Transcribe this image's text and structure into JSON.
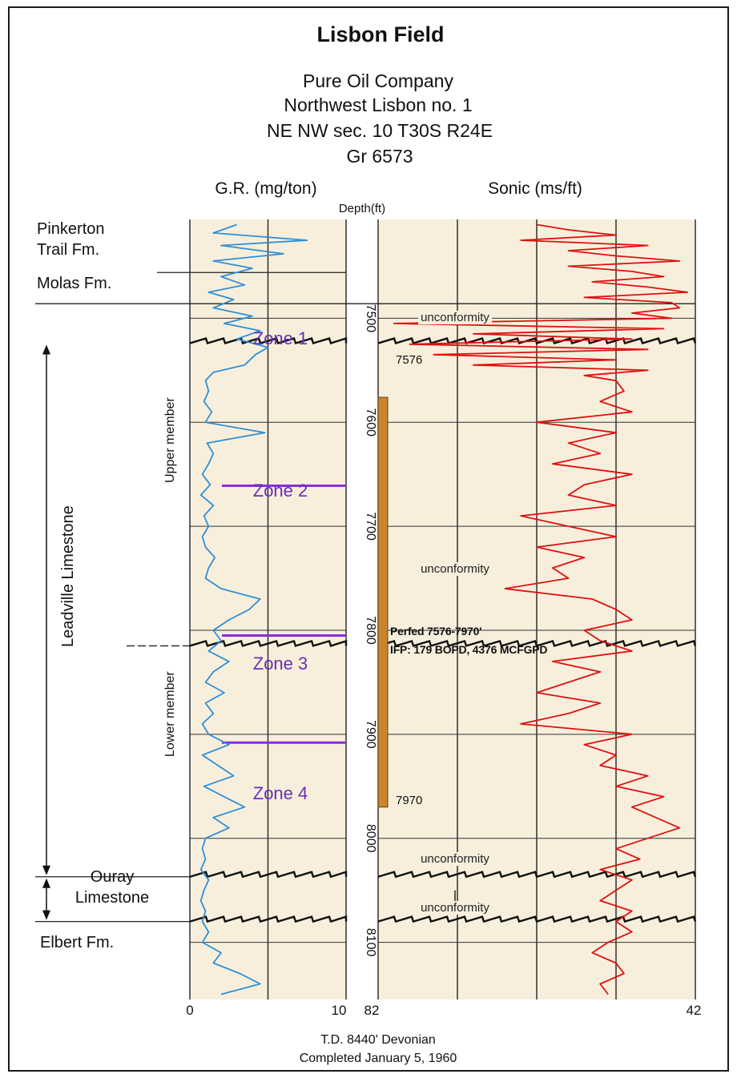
{
  "header": {
    "title": "Lisbon Field",
    "lines": [
      "Pure Oil Company",
      "Northwest Lisbon no. 1",
      "NE NW sec. 10 T30S R24E",
      "Gr 6573"
    ]
  },
  "colors": {
    "panel_bg": "#f7efdc",
    "gamma_ray": "#2f8fd6",
    "sonic": "#e01010",
    "zone_line": "#8a2be2",
    "zone_text": "#6a2fb8",
    "perforation": "#c8862e"
  },
  "formations": [
    {
      "name": "Pinkerton Trail Fm."
    },
    {
      "name": "Molas Fm."
    },
    {
      "name": "Leadville Limestone"
    },
    {
      "name": "Ouray Limestone"
    },
    {
      "name": "Elbert Fm."
    }
  ],
  "members": [
    "Upper member",
    "Lower member"
  ],
  "zones": [
    "Zone 1",
    "Zone 2",
    "Zone 3",
    "Zone 4"
  ],
  "unconformity_label": "unconformity",
  "perforation": {
    "top_label": "7576",
    "bottom_label": "7970",
    "note_line1": "Perfed 7576-7970'",
    "note_line2": "IFP: 179 BOPD, 4376 MCFGPD"
  },
  "footer": {
    "line1": "T.D. 8440' Devonian",
    "line2": "Completed January 5, 1960"
  },
  "chart_data": {
    "type": "line",
    "title": "Lisbon Field",
    "depth_axis": {
      "label": "Depth(ft)",
      "ticks": [
        7500,
        7600,
        7700,
        7800,
        7900,
        8000,
        8100
      ],
      "tick_labels": [
        "7500",
        "7600",
        "7700",
        "7800",
        "7900",
        "8000",
        "8100"
      ],
      "range": [
        7405,
        8155
      ],
      "inverted": true
    },
    "gamma_ray": {
      "label": "G.R. (mg/ton)",
      "xlim": [
        0,
        10
      ],
      "tick_labels": [
        "0",
        "10"
      ],
      "grid": [
        0,
        5,
        10
      ],
      "depths": [
        7410,
        7418,
        7425,
        7430,
        7438,
        7445,
        7452,
        7460,
        7468,
        7475,
        7482,
        7490,
        7498,
        7505,
        7512,
        7520,
        7528,
        7535,
        7545,
        7552,
        7560,
        7570,
        7580,
        7590,
        7600,
        7610,
        7620,
        7630,
        7640,
        7650,
        7660,
        7665,
        7670,
        7680,
        7690,
        7700,
        7710,
        7720,
        7730,
        7740,
        7750,
        7760,
        7770,
        7780,
        7790,
        7800,
        7810,
        7820,
        7830,
        7840,
        7850,
        7860,
        7870,
        7880,
        7890,
        7900,
        7910,
        7920,
        7930,
        7940,
        7950,
        7960,
        7970,
        7980,
        7990,
        8000,
        8010,
        8020,
        8030,
        8040,
        8050,
        8060,
        8070,
        8080,
        8090,
        8100,
        8110,
        8120,
        8130,
        8140,
        8150
      ],
      "values": [
        3.0,
        1.5,
        7.5,
        2.0,
        6.0,
        1.5,
        4.0,
        2.0,
        3.5,
        1.2,
        2.8,
        1.5,
        4.0,
        2.2,
        4.5,
        3.0,
        5.0,
        4.2,
        3.5,
        1.5,
        1.0,
        1.2,
        0.9,
        1.4,
        1.0,
        4.8,
        1.1,
        1.5,
        1.2,
        0.8,
        1.3,
        1.0,
        0.7,
        1.5,
        0.9,
        1.2,
        0.8,
        1.0,
        1.6,
        1.2,
        1.0,
        2.0,
        4.5,
        3.8,
        2.5,
        1.5,
        2.0,
        1.2,
        2.5,
        1.5,
        1.0,
        2.2,
        1.0,
        1.5,
        0.8,
        1.2,
        2.5,
        0.8,
        1.8,
        2.8,
        0.9,
        2.2,
        3.5,
        1.5,
        2.5,
        1.0,
        0.8,
        1.0,
        0.7,
        1.2,
        0.9,
        0.7,
        1.0,
        0.8,
        1.2,
        0.8,
        2.0,
        1.5,
        3.2,
        4.5,
        2.0
      ]
    },
    "sonic": {
      "label": "Sonic (ms/ft)",
      "xlim": [
        82,
        42
      ],
      "tick_labels": [
        "82",
        "42"
      ],
      "grid": [
        82,
        72,
        62,
        52,
        42
      ],
      "depths": [
        7410,
        7415,
        7420,
        7425,
        7430,
        7435,
        7440,
        7445,
        7450,
        7455,
        7460,
        7465,
        7470,
        7475,
        7480,
        7485,
        7490,
        7495,
        7500,
        7505,
        7510,
        7515,
        7520,
        7525,
        7530,
        7535,
        7540,
        7545,
        7550,
        7555,
        7560,
        7570,
        7580,
        7590,
        7600,
        7610,
        7620,
        7630,
        7640,
        7650,
        7660,
        7670,
        7680,
        7690,
        7700,
        7710,
        7720,
        7730,
        7740,
        7750,
        7760,
        7770,
        7780,
        7790,
        7800,
        7810,
        7820,
        7830,
        7840,
        7850,
        7860,
        7870,
        7880,
        7890,
        7900,
        7910,
        7920,
        7930,
        7940,
        7950,
        7960,
        7970,
        7980,
        7990,
        8000,
        8010,
        8020,
        8030,
        8040,
        8050,
        8060,
        8070,
        8080,
        8090,
        8100,
        8110,
        8120,
        8130,
        8140,
        8150
      ],
      "values": [
        62,
        58,
        52,
        64,
        48,
        58,
        52,
        44,
        58,
        50,
        46,
        55,
        48,
        43,
        56,
        45,
        44,
        50,
        45,
        80,
        46,
        70,
        50,
        78,
        48,
        75,
        52,
        70,
        48,
        56,
        52,
        51,
        54,
        50,
        62,
        52,
        58,
        54,
        60,
        50,
        56,
        58,
        52,
        64,
        58,
        52,
        62,
        56,
        60,
        58,
        66,
        55,
        52,
        50,
        56,
        54,
        50,
        60,
        54,
        58,
        62,
        54,
        58,
        64,
        50,
        56,
        52,
        54,
        48,
        52,
        46,
        50,
        47,
        44,
        48,
        52,
        49,
        54,
        50,
        52,
        54,
        50,
        52,
        50,
        53,
        55,
        52,
        51,
        54,
        53
      ]
    },
    "boundaries": [
      7456,
      7486,
      7524,
      7815,
      8037,
      8080
    ],
    "zone_separators": [
      7661,
      7805,
      7908
    ],
    "perforated_interval": [
      7576,
      7970
    ]
  }
}
